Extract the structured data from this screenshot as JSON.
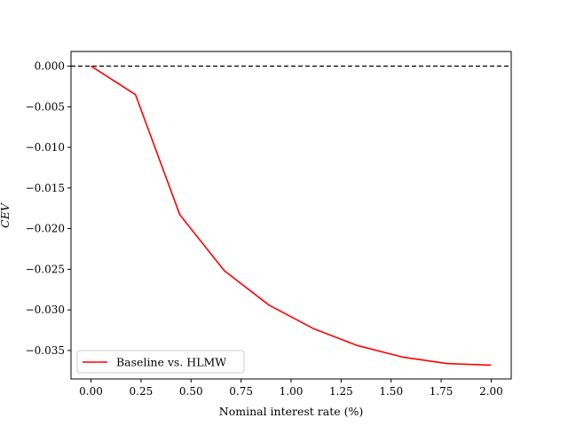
{
  "chart_data": {
    "type": "line",
    "title": "",
    "xlabel": "Nominal interest rate (%)",
    "ylabel": "CEV",
    "xlim": [
      -0.1,
      2.1
    ],
    "ylim": [
      -0.0385,
      0.0018
    ],
    "xticks": [
      0.0,
      0.25,
      0.5,
      0.75,
      1.0,
      1.25,
      1.5,
      1.75,
      2.0
    ],
    "xtick_labels": [
      "0.00",
      "0.25",
      "0.50",
      "0.75",
      "1.00",
      "1.25",
      "1.50",
      "1.75",
      "2.00"
    ],
    "yticks": [
      0.0,
      -0.005,
      -0.01,
      -0.015,
      -0.02,
      -0.025,
      -0.03,
      -0.035
    ],
    "ytick_labels": [
      "0.000",
      "−0.005",
      "−0.010",
      "−0.015",
      "−0.020",
      "−0.025",
      "−0.030",
      "−0.035"
    ],
    "reference_line": {
      "y": 0.0,
      "style": "dashed",
      "color": "#000000"
    },
    "series": [
      {
        "name": "Baseline vs. HLMW",
        "color": "#ff0000",
        "x": [
          0.0,
          0.222,
          0.444,
          0.667,
          0.889,
          1.111,
          1.333,
          1.556,
          1.778,
          2.0
        ],
        "y": [
          0.0,
          -0.0035,
          -0.0183,
          -0.0252,
          -0.0294,
          -0.0323,
          -0.0344,
          -0.0358,
          -0.0366,
          -0.0368
        ]
      }
    ],
    "legend": {
      "position": "lower-left"
    },
    "grid": false
  }
}
